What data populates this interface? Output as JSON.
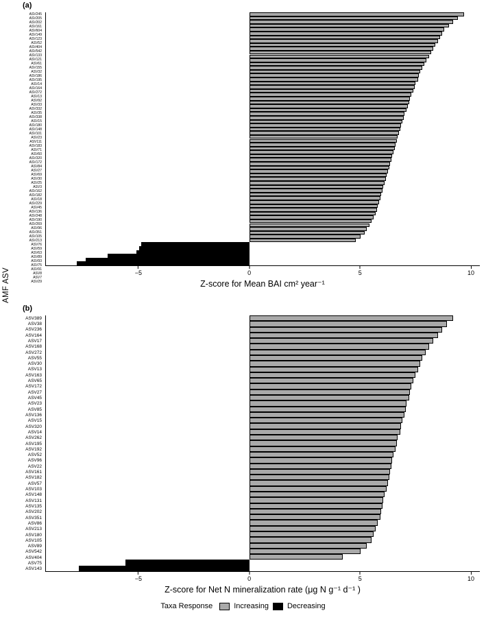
{
  "figure": {
    "y_axis_label": "AMF ASV",
    "legend": {
      "title": "Taxa Response",
      "items": [
        {
          "label": "Increasing",
          "color": "#a9a9a9"
        },
        {
          "label": "Decreasing",
          "color": "#000000"
        }
      ]
    }
  },
  "chart_data": [
    {
      "type": "bar",
      "orientation": "horizontal",
      "panel": "(a)",
      "xlabel": "Z-score for Mean BAI cm² year⁻¹",
      "ylabel": "AMF ASV",
      "xlim": [
        -9.2,
        10.4
      ],
      "grid": false,
      "legend_position": "bottom",
      "xticks": [
        {
          "value": -5,
          "label": "−5"
        },
        {
          "value": 0,
          "label": "0"
        },
        {
          "value": 5,
          "label": "5"
        },
        {
          "value": 10,
          "label": "10"
        }
      ],
      "bar_colors": {
        "increasing": "#a9a9a9",
        "decreasing": "#000000"
      },
      "rows": [
        {
          "label": "ASV245",
          "value": 9.7
        },
        {
          "label": "ASV205",
          "value": 9.4
        },
        {
          "label": "ASV202",
          "value": 9.2
        },
        {
          "label": "ASV161",
          "value": 9.0
        },
        {
          "label": "ASV604",
          "value": 8.8
        },
        {
          "label": "ASV149",
          "value": 8.7
        },
        {
          "label": "ASV123",
          "value": 8.6
        },
        {
          "label": "ASV52",
          "value": 8.5
        },
        {
          "label": "ASV404",
          "value": 8.4
        },
        {
          "label": "ASV542",
          "value": 8.3
        },
        {
          "label": "ASV133",
          "value": 8.2
        },
        {
          "label": "ASV121",
          "value": 8.1
        },
        {
          "label": "ASV61",
          "value": 8.0
        },
        {
          "label": "ASV155",
          "value": 7.9
        },
        {
          "label": "ASV32",
          "value": 7.8
        },
        {
          "label": "ASV186",
          "value": 7.7
        },
        {
          "label": "ASV195",
          "value": 7.65
        },
        {
          "label": "ASV14",
          "value": 7.6
        },
        {
          "label": "ASV164",
          "value": 7.5
        },
        {
          "label": "ASV272",
          "value": 7.45
        },
        {
          "label": "ASV13",
          "value": 7.4
        },
        {
          "label": "ASV92",
          "value": 7.3
        },
        {
          "label": "ASV33",
          "value": 7.25
        },
        {
          "label": "ASV332",
          "value": 7.2
        },
        {
          "label": "ASV35",
          "value": 7.15
        },
        {
          "label": "ASV338",
          "value": 7.1
        },
        {
          "label": "ASV15",
          "value": 7.0
        },
        {
          "label": "ASV180",
          "value": 6.95
        },
        {
          "label": "ASV148",
          "value": 6.9
        },
        {
          "label": "ASV101",
          "value": 6.85
        },
        {
          "label": "ASV23",
          "value": 6.8
        },
        {
          "label": "ASV111",
          "value": 6.75
        },
        {
          "label": "ASV183",
          "value": 6.7
        },
        {
          "label": "ASV71",
          "value": 6.65
        },
        {
          "label": "ASV60",
          "value": 6.6
        },
        {
          "label": "ASV320",
          "value": 6.55
        },
        {
          "label": "ASV172",
          "value": 6.5
        },
        {
          "label": "ASV84",
          "value": 6.45
        },
        {
          "label": "ASV27",
          "value": 6.4
        },
        {
          "label": "ASV69",
          "value": 6.35
        },
        {
          "label": "ASV30",
          "value": 6.3
        },
        {
          "label": "ASV25",
          "value": 6.25
        },
        {
          "label": "ASV3",
          "value": 6.2
        },
        {
          "label": "ASV162",
          "value": 6.15
        },
        {
          "label": "ASV182",
          "value": 6.1
        },
        {
          "label": "ASV18",
          "value": 6.05
        },
        {
          "label": "ASV229",
          "value": 6.0
        },
        {
          "label": "ASV45",
          "value": 5.95
        },
        {
          "label": "ASV136",
          "value": 5.9
        },
        {
          "label": "ASV248",
          "value": 5.85
        },
        {
          "label": "ASV190",
          "value": 5.8
        },
        {
          "label": "ASV269",
          "value": 5.75
        },
        {
          "label": "ASV96",
          "value": 5.7
        },
        {
          "label": "ASV351",
          "value": 5.6
        },
        {
          "label": "ASV105",
          "value": 5.5
        },
        {
          "label": "ASV213",
          "value": 5.4
        },
        {
          "label": "ASV76",
          "value": 5.3
        },
        {
          "label": "ASV59",
          "value": 5.2
        },
        {
          "label": "ASV63",
          "value": 5.0
        },
        {
          "label": "ASV89",
          "value": 4.8
        },
        {
          "label": "ASV93",
          "value": -4.9
        },
        {
          "label": "ASV75",
          "value": -5.0
        },
        {
          "label": "ASV91",
          "value": -5.1
        },
        {
          "label": "ASV8",
          "value": -6.4
        },
        {
          "label": "ASV7",
          "value": -7.4
        },
        {
          "label": "ASV29",
          "value": -7.8
        }
      ]
    },
    {
      "type": "bar",
      "orientation": "horizontal",
      "panel": "(b)",
      "xlabel": "Z-score for Net N mineralization rate (μg N g⁻¹ d⁻¹ )",
      "ylabel": "AMF ASV",
      "xlim": [
        -9.2,
        10.4
      ],
      "grid": false,
      "legend_position": "bottom",
      "xticks": [
        {
          "value": -5,
          "label": "−5"
        },
        {
          "value": 0,
          "label": "0"
        },
        {
          "value": 5,
          "label": "5"
        },
        {
          "value": 10,
          "label": "10"
        }
      ],
      "bar_colors": {
        "increasing": "#a9a9a9",
        "decreasing": "#000000"
      },
      "rows": [
        {
          "label": "ASV389",
          "value": 9.2
        },
        {
          "label": "ASV38",
          "value": 8.9
        },
        {
          "label": "ASV236",
          "value": 8.7
        },
        {
          "label": "ASV164",
          "value": 8.5
        },
        {
          "label": "ASV17",
          "value": 8.3
        },
        {
          "label": "ASV168",
          "value": 8.1
        },
        {
          "label": "ASV272",
          "value": 7.95
        },
        {
          "label": "ASV55",
          "value": 7.8
        },
        {
          "label": "ASV30",
          "value": 7.7
        },
        {
          "label": "ASV13",
          "value": 7.6
        },
        {
          "label": "ASV163",
          "value": 7.5
        },
        {
          "label": "ASV65",
          "value": 7.4
        },
        {
          "label": "ASV172",
          "value": 7.3
        },
        {
          "label": "ASV27",
          "value": 7.25
        },
        {
          "label": "ASV45",
          "value": 7.2
        },
        {
          "label": "ASV23",
          "value": 7.1
        },
        {
          "label": "ASV85",
          "value": 7.05
        },
        {
          "label": "ASV136",
          "value": 7.0
        },
        {
          "label": "ASV15",
          "value": 6.9
        },
        {
          "label": "ASV320",
          "value": 6.85
        },
        {
          "label": "ASV14",
          "value": 6.8
        },
        {
          "label": "ASV262",
          "value": 6.7
        },
        {
          "label": "ASV195",
          "value": 6.65
        },
        {
          "label": "ASV192",
          "value": 6.6
        },
        {
          "label": "ASV52",
          "value": 6.5
        },
        {
          "label": "ASV96",
          "value": 6.45
        },
        {
          "label": "ASV22",
          "value": 6.4
        },
        {
          "label": "ASV161",
          "value": 6.35
        },
        {
          "label": "ASV182",
          "value": 6.3
        },
        {
          "label": "ASV57",
          "value": 6.25
        },
        {
          "label": "ASV103",
          "value": 6.2
        },
        {
          "label": "ASV148",
          "value": 6.1
        },
        {
          "label": "ASV131",
          "value": 6.05
        },
        {
          "label": "ASV135",
          "value": 6.0
        },
        {
          "label": "ASV202",
          "value": 5.95
        },
        {
          "label": "ASV351",
          "value": 5.9
        },
        {
          "label": "ASV86",
          "value": 5.8
        },
        {
          "label": "ASV213",
          "value": 5.7
        },
        {
          "label": "ASV180",
          "value": 5.6
        },
        {
          "label": "ASV105",
          "value": 5.5
        },
        {
          "label": "ASV89",
          "value": 5.3
        },
        {
          "label": "ASV542",
          "value": 5.0
        },
        {
          "label": "ASV404",
          "value": 4.2
        },
        {
          "label": "ASV75",
          "value": -5.6
        },
        {
          "label": "ASV143",
          "value": -7.7
        }
      ]
    }
  ]
}
